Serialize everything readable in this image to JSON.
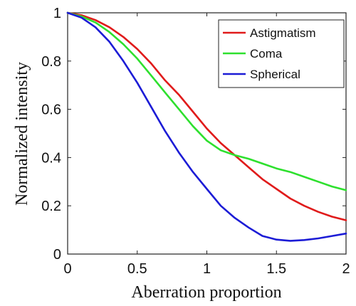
{
  "chart_data": {
    "type": "line",
    "xlabel": "Aberration proportion",
    "ylabel": "Normalized intensity",
    "xlim": [
      0,
      2
    ],
    "ylim": [
      0,
      1
    ],
    "xticks": [
      0,
      0.5,
      1,
      1.5,
      2
    ],
    "xtick_labels": [
      "0",
      "0.5",
      "1",
      "1.5",
      "2"
    ],
    "yticks": [
      0,
      0.2,
      0.4,
      0.6,
      0.8,
      1
    ],
    "ytick_labels": [
      "0",
      "0.2",
      "0.4",
      "0.6",
      "0.8",
      "1"
    ],
    "grid": false,
    "legend_position": "top-right",
    "series": [
      {
        "name": "Astigmatism",
        "color": "#e01b1b",
        "x": [
          0,
          0.1,
          0.2,
          0.3,
          0.4,
          0.5,
          0.6,
          0.7,
          0.8,
          0.9,
          1.0,
          1.1,
          1.2,
          1.3,
          1.4,
          1.5,
          1.6,
          1.7,
          1.8,
          1.9,
          2.0
        ],
        "y": [
          1.0,
          0.99,
          0.97,
          0.94,
          0.9,
          0.85,
          0.79,
          0.72,
          0.66,
          0.59,
          0.52,
          0.46,
          0.41,
          0.36,
          0.31,
          0.27,
          0.23,
          0.2,
          0.175,
          0.155,
          0.14
        ]
      },
      {
        "name": "Coma",
        "color": "#2ee02e",
        "x": [
          0,
          0.1,
          0.2,
          0.3,
          0.4,
          0.5,
          0.6,
          0.7,
          0.8,
          0.9,
          1.0,
          1.1,
          1.2,
          1.3,
          1.4,
          1.5,
          1.6,
          1.7,
          1.8,
          1.9,
          2.0
        ],
        "y": [
          1.0,
          0.985,
          0.96,
          0.92,
          0.87,
          0.81,
          0.74,
          0.67,
          0.6,
          0.53,
          0.47,
          0.43,
          0.41,
          0.395,
          0.375,
          0.355,
          0.34,
          0.32,
          0.3,
          0.28,
          0.265
        ]
      },
      {
        "name": "Spherical",
        "color": "#1c1cd6",
        "x": [
          0,
          0.1,
          0.2,
          0.3,
          0.4,
          0.5,
          0.6,
          0.7,
          0.8,
          0.9,
          1.0,
          1.1,
          1.2,
          1.3,
          1.4,
          1.5,
          1.6,
          1.7,
          1.8,
          1.9,
          2.0
        ],
        "y": [
          1.0,
          0.98,
          0.94,
          0.88,
          0.8,
          0.71,
          0.61,
          0.51,
          0.42,
          0.34,
          0.27,
          0.2,
          0.15,
          0.11,
          0.075,
          0.06,
          0.055,
          0.058,
          0.065,
          0.075,
          0.085
        ]
      }
    ]
  }
}
